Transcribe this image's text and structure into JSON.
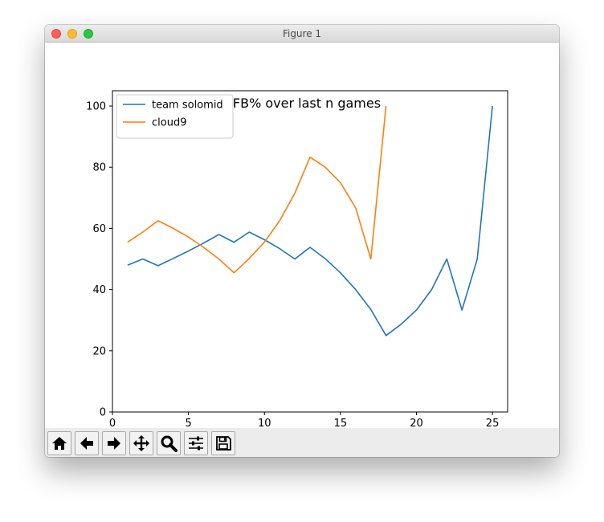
{
  "window": {
    "title": "Figure 1"
  },
  "toolbar": {
    "buttons": [
      {
        "name": "home-button",
        "icon": "home-icon"
      },
      {
        "name": "back-button",
        "icon": "arrow-left-icon"
      },
      {
        "name": "forward-button",
        "icon": "arrow-right-icon"
      },
      {
        "name": "pan-button",
        "icon": "move-icon"
      },
      {
        "name": "zoom-button",
        "icon": "magnifier-icon"
      },
      {
        "name": "configure-subplots-button",
        "icon": "sliders-icon"
      },
      {
        "name": "save-button",
        "icon": "floppy-disk-icon"
      }
    ]
  },
  "chart_data": {
    "type": "line",
    "title": "FB% over last n games",
    "xlabel": "",
    "ylabel": "",
    "xlim": [
      0,
      26
    ],
    "ylim": [
      0,
      105
    ],
    "xticks": [
      0,
      5,
      10,
      15,
      20,
      25
    ],
    "yticks": [
      0,
      20,
      40,
      60,
      80,
      100
    ],
    "grid": false,
    "legend": "upper-left",
    "series": [
      {
        "name": "team solomid",
        "color": "#1f77b4",
        "x": [
          1,
          2,
          3,
          4,
          5,
          6,
          7,
          8,
          9,
          10,
          11,
          12,
          13,
          14,
          15,
          16,
          17,
          18,
          19,
          20,
          21,
          22,
          23,
          24,
          25
        ],
        "y": [
          48,
          50,
          47.8,
          50.2,
          52.6,
          55.2,
          58,
          55.5,
          58.8,
          56.3,
          53.4,
          50,
          53.8,
          50.1,
          45.5,
          40,
          33.5,
          25,
          28.7,
          33.3,
          40,
          50,
          33.3,
          50,
          100
        ]
      },
      {
        "name": "cloud9",
        "color": "#ff7f0e",
        "x": [
          1,
          2,
          3,
          4,
          5,
          6,
          7,
          8,
          9,
          10,
          11,
          12,
          13,
          14,
          15,
          16,
          17,
          18
        ],
        "y": [
          55.5,
          58.8,
          62.5,
          60,
          57.2,
          53.8,
          50,
          45.5,
          50.2,
          55.5,
          62.5,
          71.5,
          83.3,
          80,
          75,
          66.7,
          50,
          100
        ]
      }
    ]
  }
}
